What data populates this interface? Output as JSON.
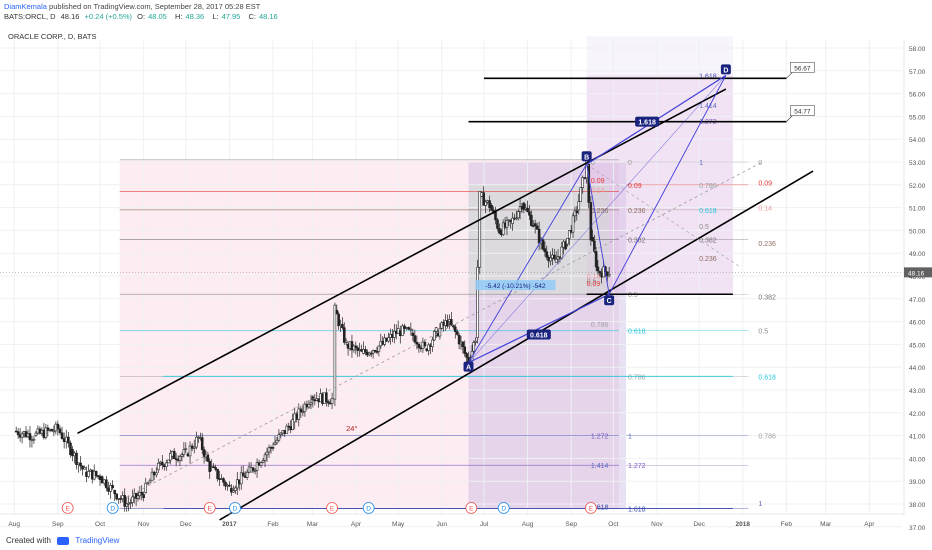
{
  "header": {
    "author": "DiamKemala",
    "published_text": "published on TradingView.com, September 28, 2017 05:28 EST",
    "symbol": "BATS:ORCL, D",
    "last": "48.16",
    "change": "+0.24 (+0.5%)",
    "open_label": "O:",
    "open": "48.05",
    "high_label": "H:",
    "high": "48.36",
    "low_label": "L:",
    "low": "47.95",
    "close_label": "C:",
    "close": "48.16"
  },
  "chart_title": "ORACLE CORP., D, BATS",
  "footer": {
    "created_with": "Created with",
    "brand": "TradingView"
  },
  "colors": {
    "up": "#26a69a",
    "down": "#ef5350",
    "candle": "#222222",
    "pattern": "#3f3fd8",
    "channel": "#000000"
  },
  "chart_data": {
    "type": "candlestick",
    "title": "ORACLE CORP., D, BATS",
    "x_ticks": [
      "Aug",
      "Sep",
      "Oct",
      "Nov",
      "Dec",
      "2017",
      "Feb",
      "Mar",
      "Apr",
      "May",
      "Jun",
      "Jul",
      "Aug",
      "Sep",
      "Oct",
      "Nov",
      "Dec",
      "2018",
      "Feb",
      "Mar",
      "Apr"
    ],
    "y_ticks": [
      "58.00",
      "57.00",
      "56.00",
      "55.00",
      "54.00",
      "53.00",
      "52.00",
      "51.00",
      "50.00",
      "49.00",
      "48.00",
      "47.00",
      "46.00",
      "45.00",
      "44.00",
      "43.00",
      "42.00",
      "41.00",
      "40.00",
      "39.00",
      "38.00",
      "37.00"
    ],
    "ylim": [
      37,
      58.6
    ],
    "last_price": "48.16",
    "price_path": [
      [
        "2016-08-01",
        41.2
      ],
      [
        "2016-08-15",
        41.0
      ],
      [
        "2016-09-01",
        41.3
      ],
      [
        "2016-09-10",
        40.4
      ],
      [
        "2016-09-20",
        39.4
      ],
      [
        "2016-10-01",
        39.2
      ],
      [
        "2016-10-10",
        38.6
      ],
      [
        "2016-10-20",
        38.0
      ],
      [
        "2016-11-01",
        38.5
      ],
      [
        "2016-11-10",
        39.5
      ],
      [
        "2016-11-20",
        40.1
      ],
      [
        "2016-12-01",
        40.2
      ],
      [
        "2016-12-10",
        40.9
      ],
      [
        "2016-12-18",
        39.6
      ],
      [
        "2017-01-01",
        38.7
      ],
      [
        "2017-01-15",
        39.4
      ],
      [
        "2017-02-01",
        40.6
      ],
      [
        "2017-02-15",
        41.6
      ],
      [
        "2017-02-28",
        42.7
      ],
      [
        "2017-03-15",
        42.6
      ],
      [
        "2017-03-17",
        46.5
      ],
      [
        "2017-03-25",
        45.0
      ],
      [
        "2017-04-05",
        44.6
      ],
      [
        "2017-04-20",
        45.0
      ],
      [
        "2017-05-01",
        45.6
      ],
      [
        "2017-05-10",
        45.5
      ],
      [
        "2017-05-20",
        44.8
      ],
      [
        "2017-05-28",
        45.5
      ],
      [
        "2017-06-05",
        46.0
      ],
      [
        "2017-06-12",
        45.4
      ],
      [
        "2017-06-20",
        44.2
      ],
      [
        "2017-06-25",
        45.3
      ],
      [
        "2017-06-28",
        51.5
      ],
      [
        "2017-07-05",
        51.1
      ],
      [
        "2017-07-12",
        50.0
      ],
      [
        "2017-07-20",
        50.3
      ],
      [
        "2017-07-28",
        51.2
      ],
      [
        "2017-08-05",
        50.3
      ],
      [
        "2017-08-12",
        49.2
      ],
      [
        "2017-08-20",
        48.6
      ],
      [
        "2017-08-28",
        49.4
      ],
      [
        "2017-09-05",
        50.9
      ],
      [
        "2017-09-12",
        52.9
      ],
      [
        "2017-09-15",
        49.7
      ],
      [
        "2017-09-20",
        48.2
      ],
      [
        "2017-09-28",
        48.2
      ]
    ],
    "fib_levels": {
      "left_set": [
        "0",
        "0.09",
        "0.236",
        "0.382",
        "0.5",
        "0.618",
        "0.786",
        "1",
        "1.272",
        "1.414",
        "1.618"
      ],
      "right_set": [
        "0",
        "0.09",
        "0.236",
        "0.382",
        "0.5",
        "0.618",
        "0.786",
        "1"
      ],
      "ext_set": [
        "0",
        "0.09",
        "0.14",
        "0.236",
        "0.382",
        "0.5",
        "0.618",
        "0.786",
        "1.272",
        "1.414",
        "1.618"
      ]
    },
    "pattern_points": {
      "A": [
        "2017-06-20",
        44.2
      ],
      "B": [
        "2017-09-12",
        52.9
      ],
      "C": [
        "2017-09-28",
        47.2
      ],
      "D": [
        "2017-12-20",
        56.8
      ]
    },
    "pattern_ratios": [
      "1.618",
      "0.618"
    ],
    "projection_labels": [
      "56.67",
      "54.77"
    ],
    "measure_label": "-5.42 (-10.21%) -542",
    "angle_label": "24°",
    "events": [
      "E",
      "D",
      "E",
      "D",
      "E",
      "D",
      "E",
      "D",
      "E"
    ]
  }
}
